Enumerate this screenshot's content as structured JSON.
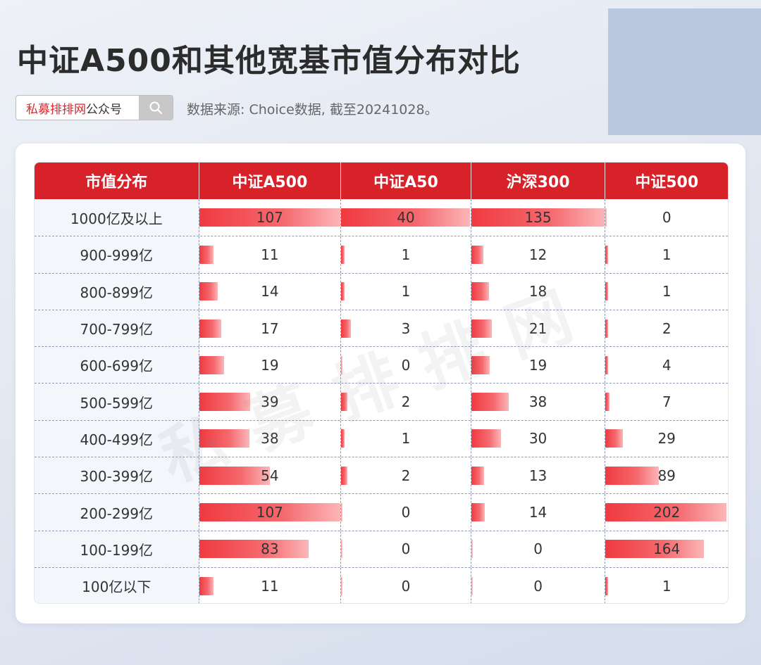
{
  "title": "中证A500和其他宽基市值分布对比",
  "search": {
    "brand": "私募排排网",
    "suffix": "公众号",
    "icon": "search-icon"
  },
  "source_note": "数据来源: Choice数据, 截至20241028。",
  "watermark": "私募排排网",
  "colors": {
    "header_bg": "#d7222a",
    "bar_start": "#ef3a40",
    "bar_end": "#fbb6b8",
    "brand_red": "#d7282c"
  },
  "chart_data": {
    "type": "table",
    "columns": [
      "市值分布",
      "中证A500",
      "中证A50",
      "沪深300",
      "中证500"
    ],
    "categories": [
      "1000亿及以上",
      "900-999亿",
      "800-899亿",
      "700-799亿",
      "600-699亿",
      "500-599亿",
      "400-499亿",
      "300-399亿",
      "200-299亿",
      "100-199亿",
      "100亿以下"
    ],
    "series": [
      {
        "name": "中证A500",
        "values": [
          107,
          11,
          14,
          17,
          19,
          39,
          38,
          54,
          107,
          83,
          11
        ]
      },
      {
        "name": "中证A50",
        "values": [
          40,
          1,
          1,
          3,
          0,
          2,
          1,
          2,
          0,
          0,
          0
        ]
      },
      {
        "name": "沪深300",
        "values": [
          135,
          12,
          18,
          21,
          19,
          38,
          30,
          13,
          14,
          0,
          0
        ]
      },
      {
        "name": "中证500",
        "values": [
          0,
          1,
          1,
          2,
          4,
          7,
          29,
          89,
          202,
          164,
          1
        ]
      }
    ]
  }
}
